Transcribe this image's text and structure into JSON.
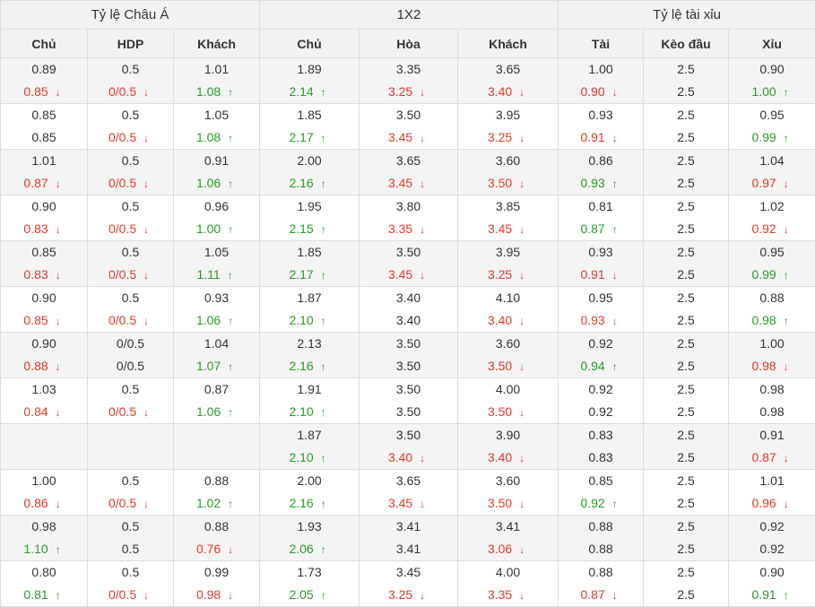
{
  "headers": {
    "groups": [
      "Tỷ lệ Châu Á",
      "1X2",
      "Tỷ lệ tài xỉu"
    ],
    "columns": [
      "Chủ",
      "HDP",
      "Khách",
      "Chủ",
      "Hòa",
      "Khách",
      "Tài",
      "Kèo đầu",
      "Xỉu"
    ]
  },
  "rows": [
    {
      "cells": [
        {
          "open": "0.89",
          "cur": "0.85",
          "trend": "down"
        },
        {
          "open": "0.5",
          "cur": "0/0.5",
          "trend": "down"
        },
        {
          "open": "1.01",
          "cur": "1.08",
          "trend": "up"
        },
        {
          "open": "1.89",
          "cur": "2.14",
          "trend": "up"
        },
        {
          "open": "3.35",
          "cur": "3.25",
          "trend": "down"
        },
        {
          "open": "3.65",
          "cur": "3.40",
          "trend": "down"
        },
        {
          "open": "1.00",
          "cur": "0.90",
          "trend": "down"
        },
        {
          "open": "2.5",
          "cur": "2.5",
          "trend": "same"
        },
        {
          "open": "0.90",
          "cur": "1.00",
          "trend": "up"
        }
      ]
    },
    {
      "cells": [
        {
          "open": "0.85",
          "cur": "0.85",
          "trend": "same"
        },
        {
          "open": "0.5",
          "cur": "0/0.5",
          "trend": "down"
        },
        {
          "open": "1.05",
          "cur": "1.08",
          "trend": "up"
        },
        {
          "open": "1.85",
          "cur": "2.17",
          "trend": "up"
        },
        {
          "open": "3.50",
          "cur": "3.45",
          "trend": "down"
        },
        {
          "open": "3.95",
          "cur": "3.25",
          "trend": "down"
        },
        {
          "open": "0.93",
          "cur": "0.91",
          "trend": "down"
        },
        {
          "open": "2.5",
          "cur": "2.5",
          "trend": "same"
        },
        {
          "open": "0.95",
          "cur": "0.99",
          "trend": "up"
        }
      ]
    },
    {
      "cells": [
        {
          "open": "1.01",
          "cur": "0.87",
          "trend": "down"
        },
        {
          "open": "0.5",
          "cur": "0/0.5",
          "trend": "down"
        },
        {
          "open": "0.91",
          "cur": "1.06",
          "trend": "up"
        },
        {
          "open": "2.00",
          "cur": "2.16",
          "trend": "up"
        },
        {
          "open": "3.65",
          "cur": "3.45",
          "trend": "down"
        },
        {
          "open": "3.60",
          "cur": "3.50",
          "trend": "down"
        },
        {
          "open": "0.86",
          "cur": "0.93",
          "trend": "up"
        },
        {
          "open": "2.5",
          "cur": "2.5",
          "trend": "same"
        },
        {
          "open": "1.04",
          "cur": "0.97",
          "trend": "down"
        }
      ]
    },
    {
      "cells": [
        {
          "open": "0.90",
          "cur": "0.83",
          "trend": "down"
        },
        {
          "open": "0.5",
          "cur": "0/0.5",
          "trend": "down"
        },
        {
          "open": "0.96",
          "cur": "1.00",
          "trend": "up"
        },
        {
          "open": "1.95",
          "cur": "2.15",
          "trend": "up"
        },
        {
          "open": "3.80",
          "cur": "3.35",
          "trend": "down"
        },
        {
          "open": "3.85",
          "cur": "3.45",
          "trend": "down"
        },
        {
          "open": "0.81",
          "cur": "0.87",
          "trend": "up"
        },
        {
          "open": "2.5",
          "cur": "2.5",
          "trend": "same"
        },
        {
          "open": "1.02",
          "cur": "0.92",
          "trend": "down"
        }
      ]
    },
    {
      "cells": [
        {
          "open": "0.85",
          "cur": "0.83",
          "trend": "down"
        },
        {
          "open": "0.5",
          "cur": "0/0.5",
          "trend": "down"
        },
        {
          "open": "1.05",
          "cur": "1.11",
          "trend": "up"
        },
        {
          "open": "1.85",
          "cur": "2.17",
          "trend": "up"
        },
        {
          "open": "3.50",
          "cur": "3.45",
          "trend": "down"
        },
        {
          "open": "3.95",
          "cur": "3.25",
          "trend": "down"
        },
        {
          "open": "0.93",
          "cur": "0.91",
          "trend": "down"
        },
        {
          "open": "2.5",
          "cur": "2.5",
          "trend": "same"
        },
        {
          "open": "0.95",
          "cur": "0.99",
          "trend": "up"
        }
      ]
    },
    {
      "cells": [
        {
          "open": "0.90",
          "cur": "0.85",
          "trend": "down"
        },
        {
          "open": "0.5",
          "cur": "0/0.5",
          "trend": "down"
        },
        {
          "open": "0.93",
          "cur": "1.06",
          "trend": "up"
        },
        {
          "open": "1.87",
          "cur": "2.10",
          "trend": "up"
        },
        {
          "open": "3.40",
          "cur": "3.40",
          "trend": "same"
        },
        {
          "open": "4.10",
          "cur": "3.40",
          "trend": "down"
        },
        {
          "open": "0.95",
          "cur": "0.93",
          "trend": "down"
        },
        {
          "open": "2.5",
          "cur": "2.5",
          "trend": "same"
        },
        {
          "open": "0.88",
          "cur": "0.98",
          "trend": "up"
        }
      ]
    },
    {
      "cells": [
        {
          "open": "0.90",
          "cur": "0.88",
          "trend": "down"
        },
        {
          "open": "0/0.5",
          "cur": "0/0.5",
          "trend": "same"
        },
        {
          "open": "1.04",
          "cur": "1.07",
          "trend": "up"
        },
        {
          "open": "2.13",
          "cur": "2.16",
          "trend": "up"
        },
        {
          "open": "3.50",
          "cur": "3.50",
          "trend": "same"
        },
        {
          "open": "3.60",
          "cur": "3.50",
          "trend": "down"
        },
        {
          "open": "0.92",
          "cur": "0.94",
          "trend": "up"
        },
        {
          "open": "2.5",
          "cur": "2.5",
          "trend": "same"
        },
        {
          "open": "1.00",
          "cur": "0.98",
          "trend": "down"
        }
      ]
    },
    {
      "cells": [
        {
          "open": "1.03",
          "cur": "0.84",
          "trend": "down"
        },
        {
          "open": "0.5",
          "cur": "0/0.5",
          "trend": "down"
        },
        {
          "open": "0.87",
          "cur": "1.06",
          "trend": "up"
        },
        {
          "open": "1.91",
          "cur": "2.10",
          "trend": "up"
        },
        {
          "open": "3.50",
          "cur": "3.50",
          "trend": "same"
        },
        {
          "open": "4.00",
          "cur": "3.50",
          "trend": "down"
        },
        {
          "open": "0.92",
          "cur": "0.92",
          "trend": "same"
        },
        {
          "open": "2.5",
          "cur": "2.5",
          "trend": "same"
        },
        {
          "open": "0.98",
          "cur": "0.98",
          "trend": "same"
        }
      ]
    },
    {
      "cells": [
        {
          "open": "",
          "cur": "",
          "trend": "same"
        },
        {
          "open": "",
          "cur": "",
          "trend": "same"
        },
        {
          "open": "",
          "cur": "",
          "trend": "same"
        },
        {
          "open": "1.87",
          "cur": "2.10",
          "trend": "up"
        },
        {
          "open": "3.50",
          "cur": "3.40",
          "trend": "down"
        },
        {
          "open": "3.90",
          "cur": "3.40",
          "trend": "down"
        },
        {
          "open": "0.83",
          "cur": "0.83",
          "trend": "same"
        },
        {
          "open": "2.5",
          "cur": "2.5",
          "trend": "same"
        },
        {
          "open": "0.91",
          "cur": "0.87",
          "trend": "down"
        }
      ]
    },
    {
      "cells": [
        {
          "open": "1.00",
          "cur": "0.86",
          "trend": "down"
        },
        {
          "open": "0.5",
          "cur": "0/0.5",
          "trend": "down"
        },
        {
          "open": "0.88",
          "cur": "1.02",
          "trend": "up"
        },
        {
          "open": "2.00",
          "cur": "2.16",
          "trend": "up"
        },
        {
          "open": "3.65",
          "cur": "3.45",
          "trend": "down"
        },
        {
          "open": "3.60",
          "cur": "3.50",
          "trend": "down"
        },
        {
          "open": "0.85",
          "cur": "0.92",
          "trend": "up"
        },
        {
          "open": "2.5",
          "cur": "2.5",
          "trend": "same"
        },
        {
          "open": "1.01",
          "cur": "0.96",
          "trend": "down"
        }
      ]
    },
    {
      "cells": [
        {
          "open": "0.98",
          "cur": "1.10",
          "trend": "up"
        },
        {
          "open": "0.5",
          "cur": "0.5",
          "trend": "same"
        },
        {
          "open": "0.88",
          "cur": "0.76",
          "trend": "down"
        },
        {
          "open": "1.93",
          "cur": "2.06",
          "trend": "up"
        },
        {
          "open": "3.41",
          "cur": "3.41",
          "trend": "same"
        },
        {
          "open": "3.41",
          "cur": "3.06",
          "trend": "down"
        },
        {
          "open": "0.88",
          "cur": "0.88",
          "trend": "same"
        },
        {
          "open": "2.5",
          "cur": "2.5",
          "trend": "same"
        },
        {
          "open": "0.92",
          "cur": "0.92",
          "trend": "same"
        }
      ]
    },
    {
      "cells": [
        {
          "open": "0.80",
          "cur": "0.81",
          "trend": "up"
        },
        {
          "open": "0.5",
          "cur": "0/0.5",
          "trend": "down"
        },
        {
          "open": "0.99",
          "cur": "0.98",
          "trend": "down"
        },
        {
          "open": "1.73",
          "cur": "2.05",
          "trend": "up"
        },
        {
          "open": "3.45",
          "cur": "3.25",
          "trend": "down"
        },
        {
          "open": "4.00",
          "cur": "3.35",
          "trend": "down"
        },
        {
          "open": "0.88",
          "cur": "0.87",
          "trend": "down"
        },
        {
          "open": "2.5",
          "cur": "2.5",
          "trend": "same"
        },
        {
          "open": "0.90",
          "cur": "0.91",
          "trend": "up"
        }
      ]
    }
  ],
  "icons": {
    "up": "arrow-up-icon",
    "down": "arrow-down-icon"
  },
  "colors": {
    "up": "#2a9a2a",
    "down": "#e03a2b",
    "header_bg": "#f2f2f2",
    "row_shade": "#f4f4f4",
    "border": "#dddddd"
  }
}
